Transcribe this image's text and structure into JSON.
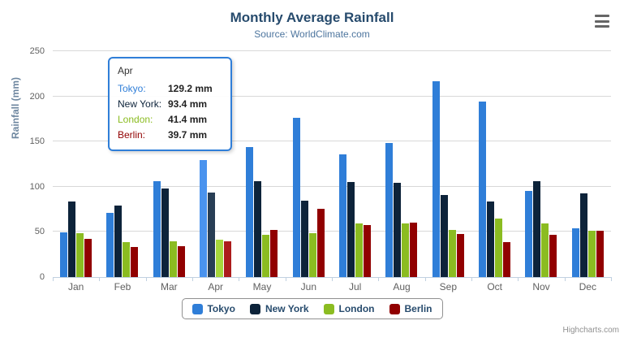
{
  "chart": {
    "title": "Monthly Average Rainfall",
    "subtitle": "Source: WorldClimate.com",
    "credit_label": "Highcharts.com"
  },
  "colors": {
    "title": "#274b6d",
    "subtitle": "#4d759e",
    "axis_title": "#6d869f",
    "axis_labels": "#606060",
    "legend_text": "#274b6d",
    "gridline": "#d8d8d8",
    "axis_line": "#c0d0e0",
    "credit": "#909090"
  },
  "tooltip": {
    "header": "Apr",
    "border_color": "#2f7ed8",
    "rows": [
      {
        "label": "Tokyo:",
        "value": "129.2 mm"
      },
      {
        "label": "New York:",
        "value": "93.4 mm"
      },
      {
        "label": "London:",
        "value": "41.4 mm"
      },
      {
        "label": "Berlin:",
        "value": "39.7 mm"
      }
    ]
  },
  "chart_data": {
    "type": "bar",
    "title": "Monthly Average Rainfall",
    "subtitle": "Source: WorldClimate.com",
    "xlabel": "",
    "ylabel": "Rainfall (mm)",
    "ylim": [
      0,
      250
    ],
    "ytick_step": 50,
    "y_ticks": [
      0,
      50,
      100,
      150,
      200,
      250
    ],
    "grid": true,
    "legend_position": "bottom",
    "categories": [
      "Jan",
      "Feb",
      "Mar",
      "Apr",
      "May",
      "Jun",
      "Jul",
      "Aug",
      "Sep",
      "Oct",
      "Nov",
      "Dec"
    ],
    "hovered_category": "Apr",
    "hovered_category_index": 3,
    "series": [
      {
        "name": "Tokyo",
        "color": "#2f7ed8",
        "hover_color": "#4a93ee",
        "values": [
          49.9,
          71.5,
          106.4,
          129.2,
          144.0,
          176.0,
          135.6,
          148.5,
          216.4,
          194.1,
          95.6,
          54.4
        ]
      },
      {
        "name": "New York",
        "color": "#0d233a",
        "hover_color": "#283e55",
        "values": [
          83.6,
          78.8,
          98.5,
          93.4,
          106.0,
          84.5,
          105.0,
          104.3,
          91.2,
          83.5,
          106.6,
          92.3
        ]
      },
      {
        "name": "London",
        "color": "#8bbc21",
        "hover_color": "#a6d73c",
        "values": [
          48.9,
          38.8,
          39.3,
          41.4,
          47.0,
          48.3,
          59.0,
          59.6,
          52.4,
          65.2,
          59.3,
          51.2
        ]
      },
      {
        "name": "Berlin",
        "color": "#910000",
        "hover_color": "#ac1b1b",
        "values": [
          42.4,
          33.2,
          34.5,
          39.7,
          52.6,
          75.5,
          57.4,
          60.4,
          47.6,
          39.1,
          46.8,
          51.1
        ]
      }
    ]
  }
}
